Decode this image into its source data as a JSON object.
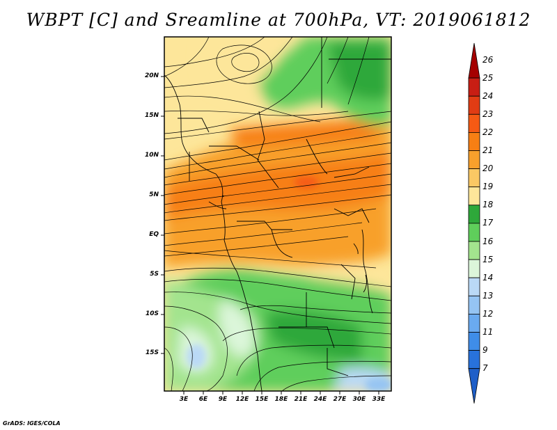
{
  "title": "WBPT [C] and Sreamline at 700hPa, VT: 2019061812",
  "credit": "GrADS: IGES/COLA",
  "map": {
    "lat_labels": [
      "20N",
      "15N",
      "10N",
      "5N",
      "EQ",
      "5S",
      "10S",
      "15S"
    ],
    "lon_labels": [
      "3E",
      "6E",
      "9E",
      "12E",
      "15E",
      "18E",
      "21E",
      "24E",
      "27E",
      "30E",
      "33E"
    ]
  },
  "colorbar": {
    "labels": [
      "26",
      "25",
      "24",
      "23",
      "22",
      "21",
      "20",
      "19",
      "18",
      "17",
      "16",
      "15",
      "14",
      "13",
      "12",
      "11",
      "9",
      "7"
    ],
    "colors": [
      "#a50000",
      "#c81e14",
      "#e13c14",
      "#f55a14",
      "#f77f14",
      "#f8a02c",
      "#fac864",
      "#fde69a",
      "#2ea83a",
      "#5fce5b",
      "#a3e48e",
      "#dcf6da",
      "#bad9f6",
      "#95c4f3",
      "#6aaaf0",
      "#3f8de8",
      "#2872dc",
      "#1f5fc8"
    ]
  }
}
